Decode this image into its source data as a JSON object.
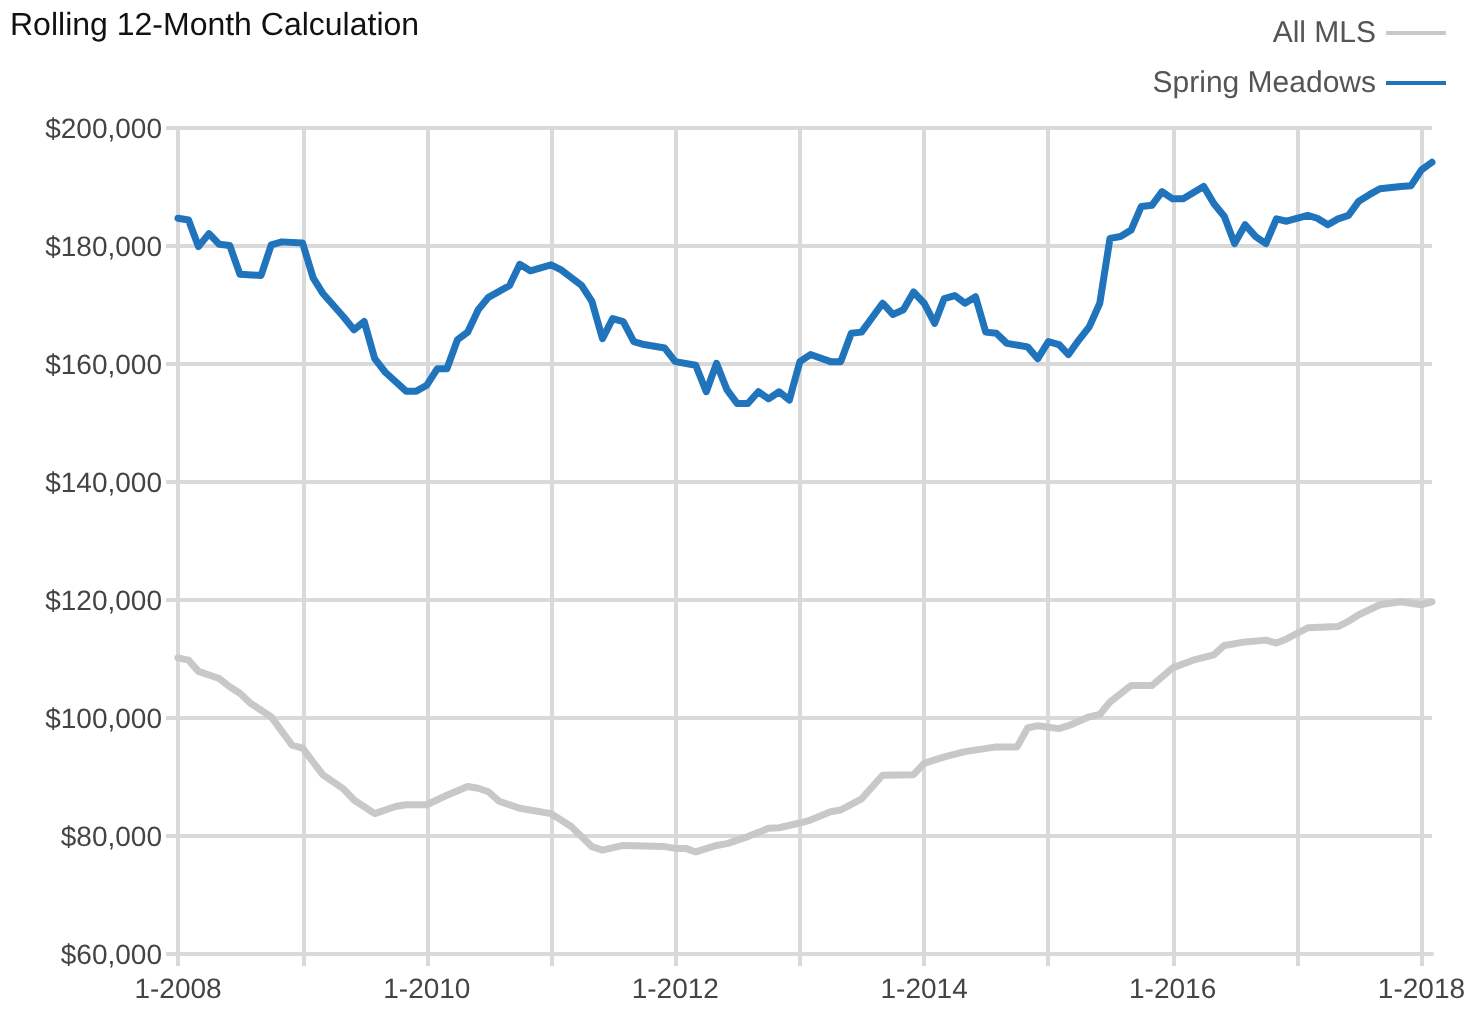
{
  "chart_data": {
    "type": "line",
    "title": "Rolling 12-Month Calculation",
    "legend": "top right",
    "grid": true,
    "marker": "none",
    "line_style": "solid",
    "xlim": [
      "2008-01",
      "2018-02"
    ],
    "xticks": [
      {
        "value": "2008-01",
        "label": "1-2008"
      },
      {
        "value": "2009-01",
        "label": null
      },
      {
        "value": "2010-01",
        "label": "1-2010"
      },
      {
        "value": "2011-01",
        "label": null
      },
      {
        "value": "2012-01",
        "label": "1-2012"
      },
      {
        "value": "2013-01",
        "label": null
      },
      {
        "value": "2014-01",
        "label": "1-2014"
      },
      {
        "value": "2015-01",
        "label": null
      },
      {
        "value": "2016-01",
        "label": "1-2016"
      },
      {
        "value": "2017-01",
        "label": null
      },
      {
        "value": "2018-01",
        "label": "1-2018"
      }
    ],
    "ylim": [
      60000,
      200000
    ],
    "yticks": [
      {
        "value": 60000,
        "label": "$60,000"
      },
      {
        "value": 80000,
        "label": "$80,000"
      },
      {
        "value": 100000,
        "label": "$100,000"
      },
      {
        "value": 120000,
        "label": "$120,000"
      },
      {
        "value": 140000,
        "label": "$140,000"
      },
      {
        "value": 160000,
        "label": "$160,000"
      },
      {
        "value": 180000,
        "label": "$180,000"
      },
      {
        "value": 200000,
        "label": "$200,000"
      }
    ],
    "series": [
      {
        "name": "All MLS",
        "color": "#c8c8c8",
        "x": [
          "2008-01",
          "2008-02",
          "2008-03",
          "2008-05",
          "2008-06",
          "2008-07",
          "2008-08",
          "2008-10",
          "2008-12",
          "2009-01",
          "2009-03",
          "2009-05",
          "2009-06",
          "2009-08",
          "2009-10",
          "2009-11",
          "2010-01",
          "2010-03",
          "2010-05",
          "2010-06",
          "2010-07",
          "2010-08",
          "2010-10",
          "2011-01",
          "2011-03",
          "2011-05",
          "2011-06",
          "2011-08",
          "2011-12",
          "2012-01",
          "2012-02",
          "2012-03",
          "2012-05",
          "2012-06",
          "2012-08",
          "2012-10",
          "2012-11",
          "2013-01",
          "2013-02",
          "2013-04",
          "2013-05",
          "2013-07",
          "2013-09",
          "2013-12",
          "2014-01",
          "2014-03",
          "2014-05",
          "2014-08",
          "2014-10",
          "2014-11",
          "2014-12",
          "2015-02",
          "2015-03",
          "2015-05",
          "2015-06",
          "2015-07",
          "2015-09",
          "2015-11",
          "2016-01",
          "2016-03",
          "2016-05",
          "2016-06",
          "2016-08",
          "2016-10",
          "2016-11",
          "2016-12",
          "2017-02",
          "2017-05",
          "2017-06",
          "2017-07",
          "2017-09",
          "2017-11",
          "2018-01",
          "2018-02"
        ],
        "values": [
          110200,
          109800,
          107900,
          106700,
          105300,
          104200,
          102500,
          100200,
          95400,
          94900,
          90400,
          88000,
          86100,
          83800,
          85000,
          85300,
          85300,
          86900,
          88400,
          88100,
          87500,
          85900,
          84700,
          83800,
          81600,
          78200,
          77600,
          78400,
          78200,
          77900,
          77900,
          77300,
          78400,
          78700,
          79900,
          81300,
          81400,
          82200,
          82700,
          84100,
          84400,
          86300,
          90300,
          90400,
          92300,
          93400,
          94300,
          95100,
          95100,
          98300,
          98700,
          98200,
          98700,
          100200,
          100600,
          102700,
          105500,
          105500,
          108500,
          109800,
          110700,
          112300,
          112900,
          113200,
          112700,
          113400,
          115300,
          115500,
          116400,
          117500,
          119200,
          119700,
          119200,
          119700
        ]
      },
      {
        "name": "Spring Meadows",
        "color": "#1f74bb",
        "x": [
          "2008-01",
          "2008-02",
          "2008-03",
          "2008-04",
          "2008-05",
          "2008-06",
          "2008-07",
          "2008-09",
          "2008-10",
          "2008-11",
          "2009-01",
          "2009-02",
          "2009-03",
          "2009-05",
          "2009-06",
          "2009-07",
          "2009-08",
          "2009-09",
          "2009-11",
          "2009-12",
          "2010-01",
          "2010-02",
          "2010-03",
          "2010-04",
          "2010-05",
          "2010-06",
          "2010-07",
          "2010-09",
          "2010-10",
          "2010-11",
          "2011-01",
          "2011-02",
          "2011-04",
          "2011-05",
          "2011-06",
          "2011-07",
          "2011-08",
          "2011-09",
          "2011-10",
          "2011-12",
          "2012-01",
          "2012-03",
          "2012-04",
          "2012-05",
          "2012-06",
          "2012-07",
          "2012-08",
          "2012-09",
          "2012-10",
          "2012-11",
          "2012-12",
          "2013-01",
          "2013-02",
          "2013-04",
          "2013-05",
          "2013-06",
          "2013-07",
          "2013-09",
          "2013-10",
          "2013-11",
          "2013-12",
          "2014-01",
          "2014-02",
          "2014-03",
          "2014-04",
          "2014-05",
          "2014-06",
          "2014-07",
          "2014-08",
          "2014-09",
          "2014-11",
          "2014-12",
          "2015-01",
          "2015-02",
          "2015-03",
          "2015-04",
          "2015-05",
          "2015-06",
          "2015-07",
          "2015-08",
          "2015-09",
          "2015-10",
          "2015-11",
          "2015-12",
          "2016-01",
          "2016-02",
          "2016-04",
          "2016-05",
          "2016-06",
          "2016-07",
          "2016-08",
          "2016-09",
          "2016-10",
          "2016-11",
          "2016-12",
          "2017-02",
          "2017-03",
          "2017-04",
          "2017-05",
          "2017-06",
          "2017-07",
          "2017-08",
          "2017-09",
          "2017-11",
          "2017-12",
          "2018-01",
          "2018-02"
        ],
        "values": [
          184700,
          184400,
          179900,
          182100,
          180300,
          180100,
          175200,
          175000,
          180200,
          180700,
          180500,
          174600,
          172000,
          168000,
          165800,
          167200,
          160900,
          158600,
          155400,
          155400,
          156400,
          159200,
          159200,
          164100,
          165400,
          169200,
          171300,
          173300,
          176900,
          175800,
          176800,
          175900,
          173300,
          170600,
          164300,
          167700,
          167200,
          163800,
          163300,
          162700,
          160400,
          159800,
          155300,
          160100,
          155600,
          153300,
          153300,
          155300,
          154100,
          155300,
          153900,
          160400,
          161600,
          160400,
          160400,
          165200,
          165400,
          170300,
          168400,
          169200,
          172200,
          170300,
          166900,
          171100,
          171600,
          170300,
          171400,
          165400,
          165200,
          163500,
          162900,
          160900,
          163800,
          163300,
          161600,
          164100,
          166300,
          170300,
          181300,
          181600,
          182700,
          186700,
          186900,
          189200,
          188000,
          188000,
          190100,
          187200,
          185000,
          180400,
          183600,
          181600,
          180400,
          184600,
          184200,
          185200,
          184700,
          183600,
          184600,
          185200,
          187600,
          188700,
          189700,
          190100,
          190200,
          192900,
          194200
        ]
      }
    ]
  }
}
